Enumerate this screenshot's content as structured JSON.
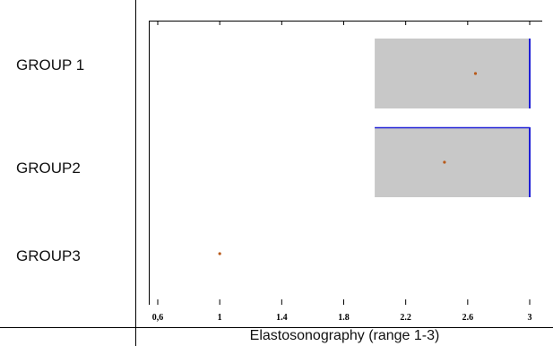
{
  "chart_data": {
    "type": "boxplot",
    "title": "",
    "xlabel": "Elastosonography (range 1-3)",
    "ylabel": "",
    "xlim": [
      0.6,
      3.0
    ],
    "xticks": [
      "0,6",
      "1",
      "1.4",
      "1.8",
      "2.2",
      "2.6",
      "3"
    ],
    "xtick_values": [
      0.6,
      1.0,
      1.4,
      1.8,
      2.2,
      2.6,
      3.0
    ],
    "categories": [
      "GROUP 1",
      "GROUP2",
      "GROUP3"
    ],
    "boxes": [
      {
        "category": "GROUP 1",
        "q1": 2.0,
        "median": 3.0,
        "q3": 3.0,
        "mean": 2.65
      },
      {
        "category": "GROUP2",
        "q1": 2.0,
        "median": 3.0,
        "q3": 3.0,
        "mean": 2.45
      },
      {
        "category": "GROUP3",
        "q1": 1.0,
        "median": 1.0,
        "q3": 1.0,
        "mean": 1.0
      }
    ],
    "colors": {
      "box_fill": "#c8c8c8",
      "median_line": "#1f1fd6",
      "mean_marker": "#b85a1a"
    },
    "grid": false
  }
}
